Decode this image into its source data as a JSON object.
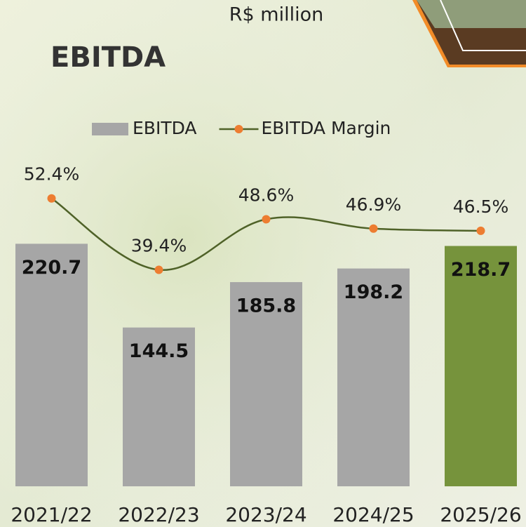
{
  "chart_data": {
    "type": "bar",
    "title": "EBITDA",
    "subtitle": "R$ million",
    "categories": [
      "2021/22",
      "2022/23",
      "2023/24",
      "2024/25",
      "2025/26"
    ],
    "series": [
      {
        "name": "EBITDA",
        "type": "bar",
        "color": "#a6a6a6",
        "colors": [
          "#a6a6a6",
          "#a6a6a6",
          "#a6a6a6",
          "#a6a6a6",
          "#76933c"
        ],
        "values": [
          220.7,
          144.5,
          185.8,
          198.2,
          218.7
        ]
      },
      {
        "name": "EBITDA Margin",
        "type": "line",
        "axis": "y2",
        "color": "#4f6228",
        "marker_color": "#ed7d31",
        "values": [
          52.4,
          39.4,
          48.6,
          46.9,
          46.5
        ],
        "value_labels": [
          "52.4%",
          "39.4%",
          "48.6%",
          "46.9%",
          "46.5%"
        ]
      }
    ],
    "ylim": [
      0,
      250
    ],
    "y2lim": [
      0,
      50
    ]
  }
}
